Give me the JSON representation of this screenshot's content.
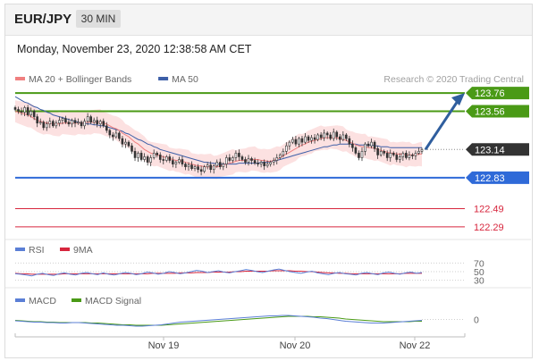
{
  "header": {
    "symbol": "EUR/JPY",
    "timeframe": "30 MIN",
    "datetime": "Monday, November 23, 2020 12:38:58 AM CET"
  },
  "colors": {
    "ma20": "#f08080",
    "ma50": "#3d5fa8",
    "bands_fill": "#fbdcdc",
    "resistance": "#4a9a16",
    "support_blue": "#2f6ad8",
    "support_red": "#d7263d",
    "current": "#333333",
    "candle": "#333333",
    "rsi": "#5b7fd6",
    "rsi_ma": "#d7263d",
    "macd": "#5b7fd6",
    "macd_signal": "#4a9a16",
    "arrow": "#2f5e9e"
  },
  "chart_data": [
    {
      "type": "candlestick",
      "title": "EUR/JPY 30 MIN",
      "legend": [
        {
          "name": "MA 20 + Bollinger Bands",
          "color": "#f08080"
        },
        {
          "name": "MA 50",
          "color": "#3d5fa8"
        }
      ],
      "watermark": "Research © 2020 Trading Central",
      "x_ticks": [
        "Nov 19",
        "Nov 20",
        "Nov 22"
      ],
      "ylim": [
        122.25,
        123.82
      ],
      "levels": [
        {
          "value": 123.76,
          "label": "123.76",
          "kind": "resistance"
        },
        {
          "value": 123.56,
          "label": "123.56",
          "kind": "resistance"
        },
        {
          "value": 123.14,
          "label": "123.14",
          "kind": "current"
        },
        {
          "value": 122.83,
          "label": "122.83",
          "kind": "support"
        },
        {
          "value": 122.49,
          "label": "122.49",
          "kind": "support-secondary"
        },
        {
          "value": 122.29,
          "label": "122.29",
          "kind": "support-secondary"
        }
      ],
      "close": [
        123.58,
        123.56,
        123.55,
        123.6,
        123.52,
        123.56,
        123.5,
        123.43,
        123.44,
        123.38,
        123.42,
        123.45,
        123.4,
        123.43,
        123.46,
        123.48,
        123.44,
        123.42,
        123.46,
        123.43,
        123.44,
        123.4,
        123.45,
        123.5,
        123.44,
        123.46,
        123.42,
        123.45,
        123.4,
        123.35,
        123.3,
        123.28,
        123.32,
        123.26,
        123.2,
        123.22,
        123.18,
        123.12,
        123.05,
        123.1,
        123.03,
        123.06,
        123.0,
        123.05,
        123.1,
        123.08,
        123.03,
        123.02,
        123.06,
        123.02,
        122.98,
        123.0,
        123.03,
        122.98,
        122.95,
        122.97,
        122.93,
        122.95,
        122.92,
        122.9,
        122.95,
        122.97,
        122.92,
        122.96,
        123.0,
        122.95,
        122.98,
        123.05,
        123.02,
        123.05,
        123.1,
        123.06,
        123.03,
        123.0,
        123.04,
        123.02,
        122.99,
        122.98,
        123.0,
        122.96,
        122.98,
        123.0,
        123.02,
        123.05,
        123.08,
        123.12,
        123.18,
        123.22,
        123.25,
        123.2,
        123.26,
        123.22,
        123.28,
        123.24,
        123.27,
        123.25,
        123.3,
        123.27,
        123.32,
        123.3,
        123.26,
        123.33,
        123.28,
        123.25,
        123.3,
        123.26,
        123.2,
        123.16,
        123.1,
        123.05,
        123.12,
        123.2,
        123.18,
        123.22,
        123.15,
        123.08,
        123.12,
        123.1,
        123.05,
        123.1,
        123.08,
        123.03,
        123.06,
        123.1,
        123.05,
        123.08,
        123.07,
        123.1,
        123.12,
        123.14
      ],
      "ma20": [
        123.56,
        123.55,
        123.54,
        123.53,
        123.52,
        123.5,
        123.48,
        123.46,
        123.45,
        123.44,
        123.43,
        123.43,
        123.42,
        123.42,
        123.42,
        123.43,
        123.43,
        123.43,
        123.43,
        123.43,
        123.43,
        123.43,
        123.43,
        123.44,
        123.44,
        123.44,
        123.44,
        123.44,
        123.43,
        123.42,
        123.4,
        123.38,
        123.37,
        123.35,
        123.32,
        123.3,
        123.28,
        123.25,
        123.22,
        123.2,
        123.17,
        123.14,
        123.12,
        123.1,
        123.09,
        123.08,
        123.07,
        123.06,
        123.05,
        123.04,
        123.03,
        123.02,
        123.02,
        123.01,
        123.0,
        122.99,
        122.98,
        122.97,
        122.96,
        122.96,
        122.95,
        122.95,
        122.95,
        122.95,
        122.95,
        122.96,
        122.97,
        122.98,
        122.99,
        123.0,
        123.01,
        123.02,
        123.02,
        123.02,
        123.03,
        123.03,
        123.03,
        123.03,
        123.02,
        123.02,
        123.01,
        123.01,
        123.02,
        123.03,
        123.05,
        123.07,
        123.09,
        123.11,
        123.13,
        123.15,
        123.17,
        123.19,
        123.2,
        123.22,
        123.23,
        123.24,
        123.25,
        123.26,
        123.27,
        123.27,
        123.27,
        123.27,
        123.27,
        123.26,
        123.25,
        123.24,
        123.22,
        123.21,
        123.19,
        123.18,
        123.17,
        123.17,
        123.16,
        123.16,
        123.15,
        123.14,
        123.13,
        123.12,
        123.11,
        123.1,
        123.1,
        123.09,
        123.09,
        123.09,
        123.08,
        123.08,
        123.08,
        123.08,
        123.09,
        123.09
      ],
      "ma50": [
        123.72,
        123.7,
        123.68,
        123.66,
        123.65,
        123.63,
        123.61,
        123.6,
        123.58,
        123.57,
        123.55,
        123.54,
        123.52,
        123.51,
        123.5,
        123.49,
        123.48,
        123.47,
        123.46,
        123.45,
        123.44,
        123.43,
        123.43,
        123.42,
        123.42,
        123.41,
        123.41,
        123.4,
        123.4,
        123.39,
        123.38,
        123.37,
        123.36,
        123.35,
        123.34,
        123.32,
        123.31,
        123.29,
        123.27,
        123.25,
        123.24,
        123.22,
        123.2,
        123.19,
        123.17,
        123.16,
        123.14,
        123.13,
        123.12,
        123.11,
        123.1,
        123.09,
        123.08,
        123.07,
        123.06,
        123.05,
        123.04,
        123.03,
        123.02,
        123.01,
        123.0,
        123.0,
        122.99,
        122.99,
        122.98,
        122.98,
        122.98,
        122.98,
        122.98,
        122.98,
        122.98,
        122.99,
        122.99,
        122.99,
        122.99,
        122.99,
        122.99,
        122.99,
        123.0,
        123.0,
        123.0,
        123.01,
        123.01,
        123.02,
        123.03,
        123.04,
        123.05,
        123.06,
        123.07,
        123.08,
        123.09,
        123.1,
        123.11,
        123.12,
        123.13,
        123.14,
        123.15,
        123.16,
        123.17,
        123.17,
        123.18,
        123.19,
        123.19,
        123.2,
        123.2,
        123.2,
        123.2,
        123.2,
        123.2,
        123.19,
        123.19,
        123.19,
        123.19,
        123.19,
        123.18,
        123.18,
        123.17,
        123.17,
        123.17,
        123.16,
        123.16,
        123.16,
        123.16,
        123.16,
        123.16,
        123.16,
        123.16,
        123.16,
        123.16,
        123.16
      ],
      "forecast_arrow": {
        "from": 123.14,
        "to": 123.76
      }
    },
    {
      "type": "line",
      "legend": [
        {
          "name": "RSI",
          "color": "#5b7fd6"
        },
        {
          "name": "9MA",
          "color": "#d7263d"
        }
      ],
      "ylim": [
        25,
        75
      ],
      "levels": [
        {
          "value": 70,
          "label": "70"
        },
        {
          "value": 50,
          "label": "50"
        },
        {
          "value": 30,
          "label": "30"
        }
      ],
      "series": [
        {
          "name": "RSI",
          "values": [
            45,
            44,
            42,
            40,
            44,
            46,
            43,
            41,
            45,
            47,
            44,
            42,
            46,
            48,
            45,
            43,
            47,
            44,
            42,
            45,
            48,
            46,
            43,
            45,
            49,
            47,
            44,
            46,
            50,
            48,
            45,
            47,
            50,
            53,
            51,
            48,
            50,
            52,
            49,
            47,
            50,
            52,
            55,
            53,
            50,
            48,
            51,
            54,
            56,
            53,
            50,
            48,
            46,
            49,
            51,
            47,
            45,
            43,
            46,
            48,
            45,
            44,
            42,
            46,
            48,
            45,
            43,
            47,
            49,
            46,
            44,
            47,
            49,
            46,
            48
          ]
        },
        {
          "name": "9MA",
          "values": [
            46,
            45,
            45,
            44,
            44,
            44,
            44,
            44,
            44,
            45,
            45,
            45,
            45,
            45,
            45,
            45,
            45,
            45,
            45,
            45,
            45,
            45,
            45,
            45,
            45,
            46,
            46,
            46,
            46,
            46,
            47,
            47,
            47,
            48,
            48,
            48,
            49,
            49,
            49,
            49,
            50,
            50,
            51,
            51,
            51,
            51,
            51,
            52,
            52,
            52,
            52,
            51,
            51,
            50,
            50,
            49,
            48,
            47,
            47,
            46,
            46,
            45,
            45,
            45,
            45,
            45,
            45,
            45,
            45,
            45,
            45,
            46,
            46,
            46,
            46
          ]
        }
      ]
    },
    {
      "type": "line",
      "legend": [
        {
          "name": "MACD",
          "color": "#5b7fd6"
        },
        {
          "name": "MACD Signal",
          "color": "#4a9a16"
        }
      ],
      "ylim": [
        -0.25,
        0.25
      ],
      "levels": [
        {
          "value": 0,
          "label": "0"
        }
      ],
      "series": [
        {
          "name": "MACD",
          "values": [
            -0.03,
            -0.04,
            -0.05,
            -0.06,
            -0.06,
            -0.07,
            -0.07,
            -0.08,
            -0.08,
            -0.07,
            -0.07,
            -0.08,
            -0.09,
            -0.1,
            -0.11,
            -0.12,
            -0.13,
            -0.13,
            -0.14,
            -0.15,
            -0.15,
            -0.14,
            -0.13,
            -0.12,
            -0.1,
            -0.08,
            -0.06,
            -0.05,
            -0.04,
            -0.03,
            -0.02,
            -0.01,
            0.0,
            0.01,
            0.02,
            0.03,
            0.04,
            0.05,
            0.06,
            0.07,
            0.08,
            0.08,
            0.09,
            0.09,
            0.08,
            0.07,
            0.06,
            0.05,
            0.03,
            0.02,
            0.0,
            -0.02,
            -0.04,
            -0.05,
            -0.06,
            -0.07,
            -0.08,
            -0.08,
            -0.08,
            -0.07,
            -0.06,
            -0.05,
            -0.04,
            -0.03,
            -0.02
          ]
        },
        {
          "name": "MACD Signal",
          "values": [
            -0.02,
            -0.03,
            -0.04,
            -0.05,
            -0.05,
            -0.06,
            -0.06,
            -0.07,
            -0.07,
            -0.07,
            -0.07,
            -0.07,
            -0.08,
            -0.08,
            -0.09,
            -0.1,
            -0.11,
            -0.12,
            -0.12,
            -0.13,
            -0.13,
            -0.13,
            -0.13,
            -0.13,
            -0.12,
            -0.11,
            -0.1,
            -0.09,
            -0.08,
            -0.07,
            -0.06,
            -0.05,
            -0.04,
            -0.03,
            -0.02,
            -0.01,
            0.0,
            0.01,
            0.02,
            0.03,
            0.04,
            0.05,
            0.06,
            0.07,
            0.07,
            0.07,
            0.07,
            0.06,
            0.06,
            0.05,
            0.04,
            0.03,
            0.01,
            0.0,
            -0.01,
            -0.02,
            -0.03,
            -0.04,
            -0.05,
            -0.05,
            -0.05,
            -0.05,
            -0.05,
            -0.04,
            -0.04
          ]
        }
      ]
    }
  ]
}
